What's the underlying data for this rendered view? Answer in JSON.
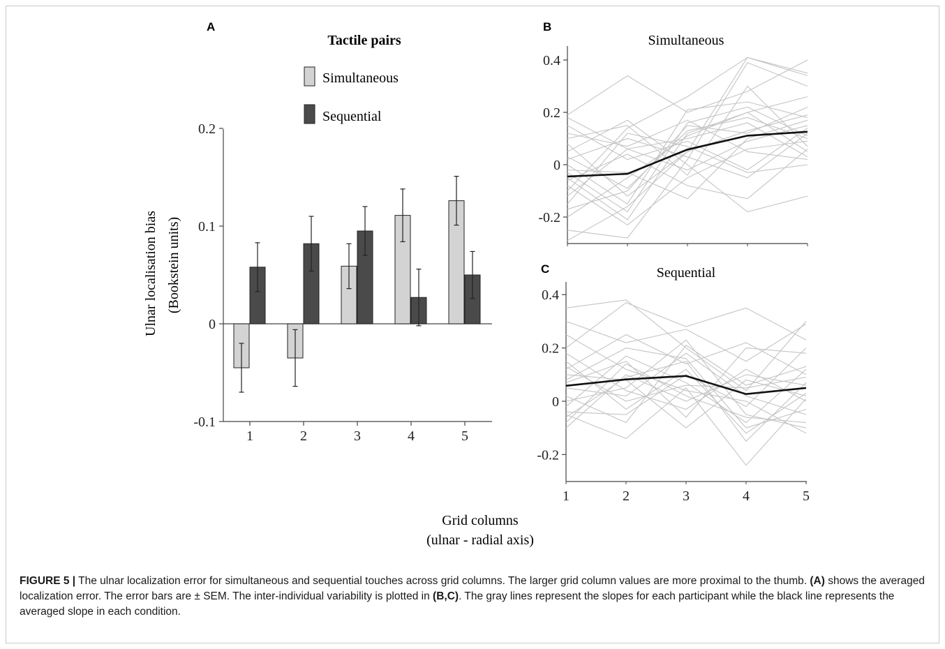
{
  "chart_data": [
    {
      "panel": "A",
      "type": "bar",
      "title": "Tactile pairs",
      "ylabel": "Ulnar localisation  bias",
      "ylabel2": "(Bookstein units)",
      "ylim": [
        -0.1,
        0.2
      ],
      "yticks": [
        "0.2",
        "0.1",
        "0",
        "-0.1"
      ],
      "categories": [
        "1",
        "2",
        "3",
        "4",
        "5"
      ],
      "series": [
        {
          "name": "Simultaneous",
          "color": "#d3d3d3",
          "values": [
            -0.045,
            -0.035,
            0.059,
            0.111,
            0.126
          ],
          "errors": [
            0.025,
            0.029,
            0.023,
            0.027,
            0.025
          ]
        },
        {
          "name": "Sequential",
          "color": "#4a4a4a",
          "values": [
            0.058,
            0.082,
            0.095,
            0.027,
            0.05
          ],
          "errors": [
            0.025,
            0.028,
            0.025,
            0.029,
            0.024
          ]
        }
      ]
    },
    {
      "panel": "B",
      "type": "line",
      "title": "Simultaneous",
      "x": [
        1,
        2,
        3,
        4,
        5
      ],
      "ylim": [
        -0.3,
        0.45
      ],
      "yticks": [
        "0.4",
        "0.2",
        "0",
        "-0.2"
      ],
      "mean": [
        -0.045,
        -0.035,
        0.058,
        0.111,
        0.126
      ],
      "participants": [
        [
          -0.29,
          -0.16,
          0.05,
          0.41,
          0.34
        ],
        [
          -0.25,
          -0.28,
          0.02,
          0.39,
          0.3
        ],
        [
          0.19,
          0.34,
          0.2,
          0.28,
          0.4
        ],
        [
          -0.1,
          0.14,
          0.26,
          0.41,
          0.35
        ],
        [
          0.0,
          -0.15,
          0.21,
          0.24,
          0.18
        ],
        [
          -0.05,
          -0.21,
          0.12,
          0.2,
          0.26
        ],
        [
          0.1,
          0.15,
          -0.04,
          0.3,
          0.07
        ],
        [
          -0.17,
          -0.1,
          0.15,
          0.12,
          0.22
        ],
        [
          0.15,
          0.02,
          0.09,
          -0.02,
          0.14
        ],
        [
          -0.12,
          0.06,
          0.1,
          0.16,
          0.03
        ],
        [
          0.05,
          0.17,
          0.0,
          -0.18,
          -0.12
        ],
        [
          -0.02,
          -0.03,
          -0.13,
          0.1,
          0.17
        ],
        [
          0.12,
          0.07,
          0.17,
          0.05,
          0.02
        ],
        [
          -0.08,
          -0.23,
          -0.05,
          0.06,
          0.09
        ],
        [
          0.02,
          0.1,
          0.03,
          -0.05,
          0.12
        ],
        [
          -0.2,
          -0.05,
          0.11,
          0.2,
          0.05
        ],
        [
          0.08,
          -0.12,
          0.05,
          0.13,
          0.19
        ],
        [
          -0.06,
          0.04,
          -0.08,
          -0.13,
          0.06
        ],
        [
          0.03,
          -0.09,
          0.13,
          0.18,
          0.1
        ],
        [
          -0.15,
          0.12,
          0.07,
          -0.03,
          0.0
        ],
        [
          0.18,
          0.06,
          -0.02,
          0.09,
          0.15
        ],
        [
          -0.03,
          -0.18,
          0.16,
          0.22,
          0.11
        ]
      ]
    },
    {
      "panel": "C",
      "type": "line",
      "title": "Sequential",
      "x": [
        1,
        2,
        3,
        4,
        5
      ],
      "xticks": [
        "1",
        "2",
        "3",
        "4",
        "5"
      ],
      "xlabel": "Grid columns",
      "xlabel2": "(ulnar - radial axis)",
      "ylim": [
        -0.3,
        0.45
      ],
      "yticks": [
        "0.4",
        "0.2",
        "0",
        "-0.2"
      ],
      "mean": [
        0.058,
        0.082,
        0.095,
        0.027,
        0.05
      ],
      "participants": [
        [
          0.35,
          0.38,
          0.2,
          0.04,
          0.3
        ],
        [
          0.2,
          0.37,
          0.28,
          0.35,
          0.23
        ],
        [
          0.12,
          0.25,
          0.14,
          0.22,
          0.1
        ],
        [
          -0.05,
          -0.14,
          0.05,
          -0.24,
          0.01
        ],
        [
          0.3,
          0.22,
          0.27,
          0.15,
          0.29
        ],
        [
          0.07,
          0.15,
          -0.06,
          0.2,
          0.18
        ],
        [
          0.0,
          0.05,
          0.23,
          -0.05,
          -0.1
        ],
        [
          -0.1,
          0.1,
          0.0,
          0.1,
          0.06
        ],
        [
          0.15,
          -0.03,
          0.12,
          -0.12,
          0.03
        ],
        [
          0.05,
          0.02,
          0.18,
          0.02,
          -0.05
        ],
        [
          -0.02,
          0.17,
          0.07,
          -0.08,
          0.12
        ],
        [
          0.1,
          0.08,
          -0.1,
          0.08,
          0.02
        ],
        [
          0.25,
          0.12,
          0.04,
          0.0,
          -0.12
        ],
        [
          -0.06,
          0.09,
          0.15,
          -0.15,
          0.07
        ],
        [
          0.02,
          -0.08,
          0.21,
          0.06,
          0.13
        ],
        [
          0.18,
          0.04,
          -0.03,
          0.12,
          0.0
        ],
        [
          -0.04,
          -0.05,
          0.1,
          -0.02,
          0.2
        ],
        [
          0.08,
          0.2,
          0.16,
          -0.1,
          -0.03
        ],
        [
          0.13,
          0.0,
          0.06,
          0.05,
          0.09
        ],
        [
          -0.08,
          0.14,
          0.02,
          -0.06,
          -0.08
        ]
      ]
    }
  ],
  "panel_letters": {
    "a": "A",
    "b": "B",
    "c": "C"
  },
  "caption": {
    "label": "FIGURE 5 |",
    "text1": " The ulnar localization error for simultaneous and sequential touches across grid columns. The larger grid column values are more proximal to the thumb. ",
    "ref_a": "(A)",
    "text2": " shows the averaged localization error. The error bars are ± SEM. The inter-individual variability is plotted in ",
    "ref_bc": "(B,C)",
    "text3": ". The gray lines represent the slopes for each participant while the black line represents the averaged slope in each condition."
  }
}
